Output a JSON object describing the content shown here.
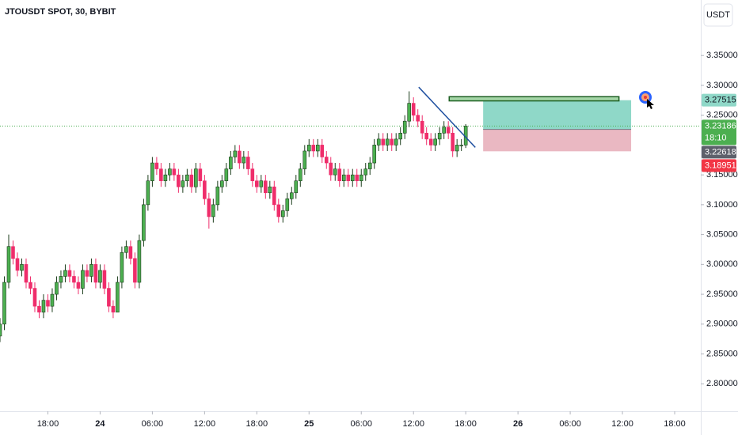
{
  "chart_data": {
    "type": "candlestick",
    "title": "JTOUSDT SPOT, 30, BYBIT",
    "currency": "USDT",
    "x": [
      12.5,
      13,
      13.5,
      14,
      14.5,
      15,
      15.5,
      16,
      16.5,
      17,
      17.5,
      18,
      18.5,
      19,
      19.5,
      20,
      20.5,
      21,
      21.5,
      22,
      22.5,
      23,
      23.5,
      24,
      24.5,
      25,
      25.5,
      26,
      26.5,
      27,
      27.5,
      28,
      28.5,
      29,
      29.5,
      30,
      30.5,
      31,
      31.5,
      32,
      32.5,
      33,
      33.5,
      34,
      34.5,
      35,
      35.5,
      36,
      36.5,
      37,
      37.5,
      38,
      38.5,
      39,
      39.5,
      40,
      40.5,
      41,
      41.5,
      42,
      42.5,
      43,
      43.5,
      44,
      44.5,
      45,
      45.5,
      46,
      46.5,
      47,
      47.5,
      48,
      48.5,
      49,
      49.5,
      50,
      50.5,
      51,
      51.5,
      52,
      52.5,
      53,
      53.5,
      54,
      54.5,
      55,
      55.5,
      56,
      56.5,
      57,
      57.5,
      58,
      58.5,
      59,
      59.5,
      60,
      60.5,
      61,
      61.5,
      62,
      62.5,
      63,
      63.5,
      64,
      64.5,
      65,
      65.5,
      66
    ],
    "open": [
      2.88,
      2.9,
      2.97,
      3.03,
      3.01,
      2.99,
      3.0,
      2.97,
      2.96,
      2.93,
      2.92,
      2.94,
      2.93,
      2.95,
      2.97,
      2.98,
      2.99,
      2.98,
      2.97,
      2.96,
      2.99,
      2.98,
      3.0,
      2.97,
      2.99,
      2.96,
      2.93,
      2.92,
      2.97,
      3.02,
      3.03,
      3.01,
      2.97,
      3.04,
      3.1,
      3.14,
      3.17,
      3.16,
      3.14,
      3.15,
      3.16,
      3.15,
      3.13,
      3.14,
      3.15,
      3.13,
      3.16,
      3.14,
      3.11,
      3.08,
      3.1,
      3.13,
      3.14,
      3.16,
      3.18,
      3.19,
      3.17,
      3.18,
      3.16,
      3.14,
      3.13,
      3.14,
      3.12,
      3.13,
      3.1,
      3.08,
      3.09,
      3.11,
      3.12,
      3.14,
      3.16,
      3.19,
      3.2,
      3.19,
      3.2,
      3.18,
      3.17,
      3.15,
      3.16,
      3.14,
      3.15,
      3.14,
      3.15,
      3.14,
      3.15,
      3.16,
      3.17,
      3.2,
      3.21,
      3.2,
      3.21,
      3.2,
      3.21,
      3.22,
      3.24,
      3.27,
      3.25,
      3.24,
      3.22,
      3.21,
      3.2,
      3.21,
      3.22,
      3.23,
      3.22,
      3.19,
      3.2,
      3.2
    ],
    "high": [
      2.91,
      2.98,
      3.05,
      3.04,
      3.02,
      3.01,
      3.01,
      2.98,
      2.97,
      2.94,
      2.95,
      2.95,
      2.96,
      2.98,
      2.99,
      3.0,
      3.0,
      2.99,
      2.98,
      3.0,
      3.0,
      3.01,
      3.01,
      3.0,
      3.0,
      2.97,
      2.94,
      2.98,
      3.03,
      3.04,
      3.04,
      3.02,
      3.05,
      3.11,
      3.15,
      3.18,
      3.18,
      3.17,
      3.16,
      3.17,
      3.17,
      3.16,
      3.15,
      3.16,
      3.16,
      3.17,
      3.17,
      3.15,
      3.12,
      3.11,
      3.14,
      3.15,
      3.17,
      3.19,
      3.2,
      3.2,
      3.19,
      3.19,
      3.17,
      3.15,
      3.15,
      3.15,
      3.14,
      3.14,
      3.11,
      3.1,
      3.12,
      3.13,
      3.15,
      3.17,
      3.2,
      3.21,
      3.21,
      3.21,
      3.21,
      3.19,
      3.18,
      3.17,
      3.17,
      3.16,
      3.16,
      3.16,
      3.16,
      3.16,
      3.17,
      3.18,
      3.21,
      3.22,
      3.22,
      3.22,
      3.22,
      3.22,
      3.23,
      3.25,
      3.29,
      3.28,
      3.26,
      3.25,
      3.23,
      3.22,
      3.22,
      3.23,
      3.24,
      3.24,
      3.23,
      3.21,
      3.21,
      3.235
    ],
    "low": [
      2.87,
      2.89,
      2.96,
      3.0,
      2.98,
      2.98,
      2.96,
      2.95,
      2.92,
      2.91,
      2.91,
      2.92,
      2.92,
      2.94,
      2.96,
      2.97,
      2.97,
      2.96,
      2.95,
      2.95,
      2.97,
      2.97,
      2.96,
      2.96,
      2.95,
      2.92,
      2.91,
      2.92,
      2.96,
      3.01,
      3.0,
      2.96,
      2.96,
      3.03,
      3.09,
      3.13,
      3.15,
      3.13,
      3.13,
      3.14,
      3.14,
      3.12,
      3.12,
      3.13,
      3.12,
      3.12,
      3.13,
      3.1,
      3.06,
      3.07,
      3.09,
      3.12,
      3.13,
      3.15,
      3.17,
      3.16,
      3.16,
      3.15,
      3.13,
      3.12,
      3.12,
      3.11,
      3.11,
      3.09,
      3.07,
      3.07,
      3.08,
      3.1,
      3.11,
      3.13,
      3.15,
      3.18,
      3.18,
      3.18,
      3.17,
      3.16,
      3.14,
      3.14,
      3.13,
      3.13,
      3.13,
      3.13,
      3.13,
      3.13,
      3.14,
      3.15,
      3.16,
      3.19,
      3.19,
      3.19,
      3.19,
      3.19,
      3.2,
      3.21,
      3.23,
      3.24,
      3.23,
      3.21,
      3.2,
      3.19,
      3.19,
      3.2,
      3.21,
      3.21,
      3.18,
      3.18,
      3.19,
      3.195
    ],
    "close": [
      2.9,
      2.97,
      3.03,
      3.01,
      2.99,
      3.0,
      2.97,
      2.96,
      2.93,
      2.92,
      2.94,
      2.93,
      2.95,
      2.97,
      2.98,
      2.99,
      2.98,
      2.97,
      2.96,
      2.99,
      2.98,
      3.0,
      2.97,
      2.99,
      2.96,
      2.93,
      2.92,
      2.97,
      3.02,
      3.03,
      3.01,
      2.97,
      3.04,
      3.1,
      3.14,
      3.17,
      3.16,
      3.14,
      3.15,
      3.16,
      3.15,
      3.13,
      3.14,
      3.15,
      3.13,
      3.16,
      3.14,
      3.11,
      3.08,
      3.1,
      3.13,
      3.14,
      3.16,
      3.18,
      3.19,
      3.17,
      3.18,
      3.16,
      3.14,
      3.13,
      3.14,
      3.12,
      3.13,
      3.1,
      3.08,
      3.09,
      3.11,
      3.12,
      3.14,
      3.16,
      3.19,
      3.2,
      3.19,
      3.2,
      3.18,
      3.17,
      3.15,
      3.16,
      3.14,
      3.15,
      3.14,
      3.15,
      3.14,
      3.15,
      3.16,
      3.17,
      3.2,
      3.21,
      3.2,
      3.21,
      3.2,
      3.21,
      3.22,
      3.24,
      3.27,
      3.25,
      3.24,
      3.22,
      3.21,
      3.2,
      3.21,
      3.22,
      3.23,
      3.22,
      3.19,
      3.2,
      3.2,
      3.23186
    ],
    "up_color": "#4caf50",
    "down_color": "#ef2d6b",
    "xlim": [
      12.5,
      93
    ],
    "xticks": [
      {
        "value": 18,
        "label": "18:00"
      },
      24,
      {
        "value": 30,
        "label": "06:00"
      },
      {
        "value": 36,
        "label": "12:00"
      },
      {
        "value": 42,
        "label": "18:00"
      },
      {
        "value": 48,
        "label": "25"
      },
      {
        "value": 54,
        "label": "06:00"
      },
      {
        "value": 60,
        "label": "12:00"
      },
      {
        "value": 66,
        "label": "18:00"
      },
      {
        "value": 72,
        "label": "26"
      },
      {
        "value": 78,
        "label": "06:00"
      },
      {
        "value": 84,
        "label": "12:00"
      },
      {
        "value": 90,
        "label": "18:00"
      }
    ],
    "ylim": [
      2.754,
      3.443
    ],
    "yticks": [
      {
        "value": 2.8,
        "label": "2.80000"
      },
      {
        "value": 2.85,
        "label": "2.85000"
      },
      {
        "value": 2.9,
        "label": "2.90000"
      },
      {
        "value": 2.95,
        "label": "2.95000"
      },
      {
        "value": 3.0,
        "label": "3.00000"
      },
      {
        "value": 3.05,
        "label": "3.05000"
      },
      {
        "value": 3.1,
        "label": "3.10000"
      },
      {
        "value": 3.15,
        "label": "3.15000"
      },
      {
        "value": 3.25,
        "label": "3.25000"
      },
      {
        "value": 3.3,
        "label": "3.30000"
      },
      {
        "value": 3.35,
        "label": "3.35000"
      }
    ],
    "grid": false,
    "last_price": 3.23186,
    "last_color": "#4caf50",
    "countdown": "18:10",
    "position": {
      "x": [
        68,
        85
      ],
      "take_profit": 3.27515,
      "entry": 3.22618,
      "stop": 3.18951,
      "profit_color": "#8fd8c8",
      "loss_color": "#eab8c2",
      "tp_tag_color": "#8fd8c8",
      "entry_tag_color": "#5d606b",
      "stop_tag_color": "#f23645"
    },
    "zone": {
      "x": [
        64.1,
        83.6
      ],
      "y": [
        3.274,
        3.281
      ],
      "color": "#1b5e20"
    },
    "trendline": {
      "x": [
        60.6,
        67.1
      ],
      "y": [
        3.297,
        3.196
      ],
      "color": "#1e4fa0"
    }
  }
}
